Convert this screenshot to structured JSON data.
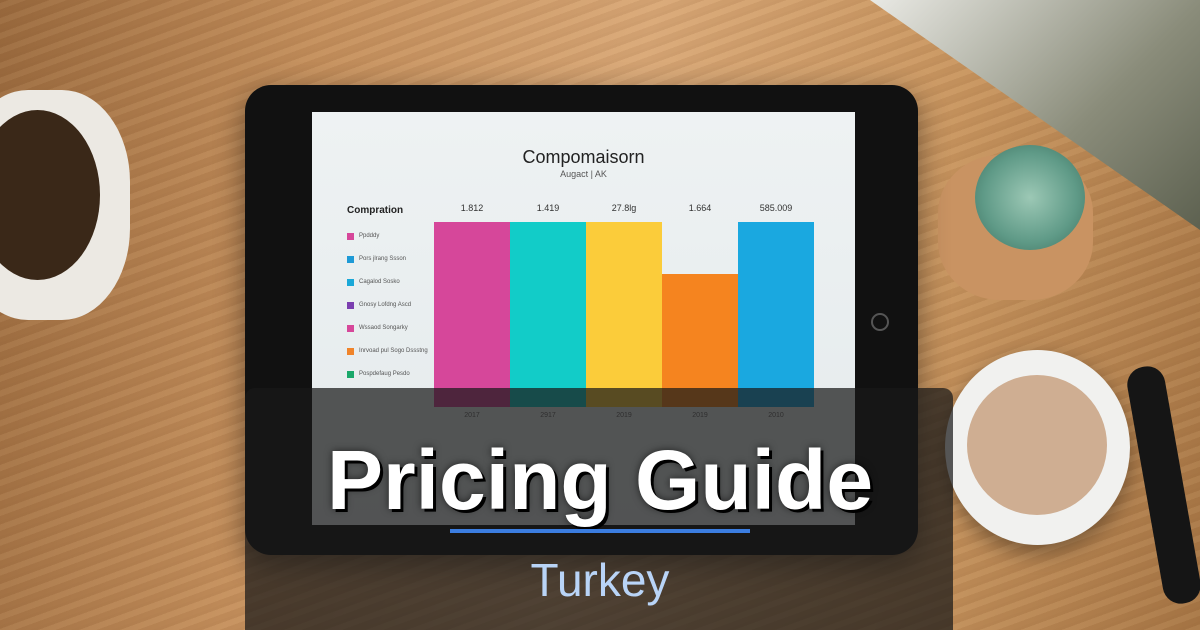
{
  "title": "Pricing Guide",
  "subtitle": "Turkey",
  "accent_color": "#3b7de0",
  "subtitle_color": "#b9d4f7",
  "tablet_screen": {
    "chart_title": "Compomaisorn",
    "chart_subtitle": "Augact | AK",
    "legend_header": "Compration",
    "legend": [
      {
        "label": "Ppdddy",
        "color": "#d6479a"
      },
      {
        "label": "Pors jlrang Ssson",
        "color": "#1e9ad6"
      },
      {
        "label": "Cagalod Sosko",
        "color": "#1aa8d8"
      },
      {
        "label": "Gnosy Lofdng Ascd",
        "color": "#7b3fb0"
      },
      {
        "label": "Wssaod Songarky",
        "color": "#d6479a"
      },
      {
        "label": "Inrvoad pul Sogo Dssstng",
        "color": "#f0842a"
      },
      {
        "label": "Pospdefaug Pesdo",
        "color": "#1aa86a"
      }
    ],
    "columns": [
      {
        "value": "1.812",
        "year": "2017",
        "color": "#d6479a",
        "level": 1.0
      },
      {
        "value": "1.419",
        "year": "2917",
        "color": "#12ccc8",
        "level": 1.0
      },
      {
        "value": "27.8lg",
        "year": "2019",
        "color": "#fbcc3a",
        "level": 1.0
      },
      {
        "value": "1.664",
        "year": "2019",
        "color": "#f5841f",
        "level": 0.72
      },
      {
        "value": "585.009",
        "year": "2010",
        "color": "#1aa8e0",
        "level": 1.0
      }
    ]
  }
}
